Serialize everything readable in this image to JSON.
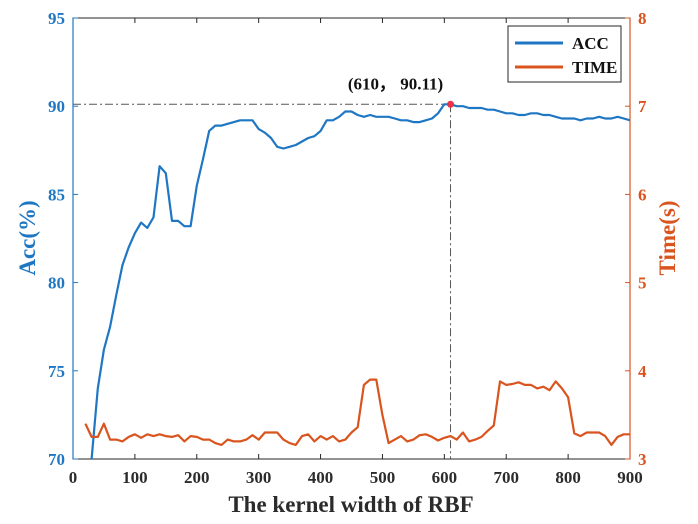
{
  "chart_data": {
    "type": "line",
    "title": "",
    "xlabel": "The kernel width of RBF",
    "ylabel_left": "Acc(%)",
    "ylabel_right": "Time(s)",
    "xlim": [
      0,
      900
    ],
    "ylim_left": [
      70,
      95
    ],
    "ylim_right": [
      3,
      8
    ],
    "xticks": [
      0,
      100,
      200,
      300,
      400,
      500,
      600,
      700,
      800,
      900
    ],
    "yticks_left": [
      70,
      75,
      80,
      85,
      90,
      95
    ],
    "yticks_right": [
      3,
      4,
      5,
      6,
      7,
      8
    ],
    "legend_position": "top-right",
    "grid": false,
    "colors": {
      "acc": "#1f77c4",
      "time": "#d9541e",
      "marker": "#e8334a",
      "reference": "#555555"
    },
    "annotation": {
      "label": "(610，  90.11)",
      "x": 610,
      "y": 90.11
    },
    "series": [
      {
        "name": "ACC",
        "axis": "left",
        "x": [
          30,
          40,
          50,
          60,
          70,
          80,
          90,
          100,
          110,
          120,
          130,
          140,
          150,
          160,
          170,
          180,
          190,
          200,
          210,
          220,
          230,
          240,
          250,
          260,
          270,
          280,
          290,
          300,
          310,
          320,
          330,
          340,
          350,
          360,
          370,
          380,
          390,
          400,
          410,
          420,
          430,
          440,
          450,
          460,
          470,
          480,
          490,
          500,
          510,
          520,
          530,
          540,
          550,
          560,
          570,
          580,
          590,
          600,
          610,
          620,
          630,
          640,
          650,
          660,
          670,
          680,
          690,
          700,
          710,
          720,
          730,
          740,
          750,
          760,
          770,
          780,
          790,
          800,
          810,
          820,
          830,
          840,
          850,
          860,
          870,
          880,
          890,
          900
        ],
        "values": [
          70.0,
          74.0,
          76.2,
          77.5,
          79.3,
          81.0,
          82.0,
          82.8,
          83.4,
          83.1,
          83.7,
          86.6,
          86.2,
          83.5,
          83.5,
          83.2,
          83.2,
          85.5,
          87.0,
          88.6,
          88.9,
          88.9,
          89.0,
          89.1,
          89.2,
          89.2,
          89.2,
          88.7,
          88.5,
          88.2,
          87.7,
          87.6,
          87.7,
          87.8,
          88.0,
          88.2,
          88.3,
          88.6,
          89.2,
          89.2,
          89.4,
          89.7,
          89.7,
          89.5,
          89.4,
          89.5,
          89.4,
          89.4,
          89.4,
          89.3,
          89.2,
          89.2,
          89.1,
          89.1,
          89.2,
          89.3,
          89.6,
          90.11,
          90.11,
          90.0,
          90.0,
          89.9,
          89.9,
          89.9,
          89.8,
          89.8,
          89.7,
          89.6,
          89.6,
          89.5,
          89.5,
          89.6,
          89.6,
          89.5,
          89.5,
          89.4,
          89.3,
          89.3,
          89.3,
          89.2,
          89.3,
          89.3,
          89.4,
          89.3,
          89.3,
          89.4,
          89.3,
          89.2
        ]
      },
      {
        "name": "TIME",
        "axis": "right",
        "x": [
          20,
          30,
          40,
          50,
          60,
          70,
          80,
          90,
          100,
          110,
          120,
          130,
          140,
          150,
          160,
          170,
          180,
          190,
          200,
          210,
          220,
          230,
          240,
          250,
          260,
          270,
          280,
          290,
          300,
          310,
          320,
          330,
          340,
          350,
          360,
          370,
          380,
          390,
          400,
          410,
          420,
          430,
          440,
          450,
          460,
          470,
          480,
          490,
          500,
          510,
          520,
          530,
          540,
          550,
          560,
          570,
          580,
          590,
          600,
          610,
          620,
          630,
          640,
          650,
          660,
          670,
          680,
          690,
          700,
          710,
          720,
          730,
          740,
          750,
          760,
          770,
          780,
          790,
          800,
          810,
          820,
          830,
          840,
          850,
          860,
          870,
          880,
          890,
          900
        ],
        "values": [
          3.4,
          3.25,
          3.25,
          3.4,
          3.22,
          3.22,
          3.2,
          3.25,
          3.28,
          3.24,
          3.28,
          3.26,
          3.28,
          3.26,
          3.25,
          3.27,
          3.2,
          3.26,
          3.25,
          3.22,
          3.22,
          3.18,
          3.16,
          3.22,
          3.2,
          3.2,
          3.22,
          3.27,
          3.22,
          3.3,
          3.3,
          3.3,
          3.22,
          3.18,
          3.16,
          3.26,
          3.28,
          3.2,
          3.26,
          3.22,
          3.26,
          3.2,
          3.22,
          3.3,
          3.36,
          3.84,
          3.9,
          3.9,
          3.5,
          3.18,
          3.22,
          3.26,
          3.2,
          3.22,
          3.27,
          3.28,
          3.25,
          3.21,
          3.24,
          3.26,
          3.22,
          3.3,
          3.2,
          3.22,
          3.25,
          3.32,
          3.38,
          3.88,
          3.84,
          3.85,
          3.87,
          3.84,
          3.84,
          3.8,
          3.82,
          3.78,
          3.88,
          3.8,
          3.7,
          3.29,
          3.26,
          3.3,
          3.3,
          3.3,
          3.26,
          3.16,
          3.25,
          3.28,
          3.28
        ]
      }
    ]
  }
}
